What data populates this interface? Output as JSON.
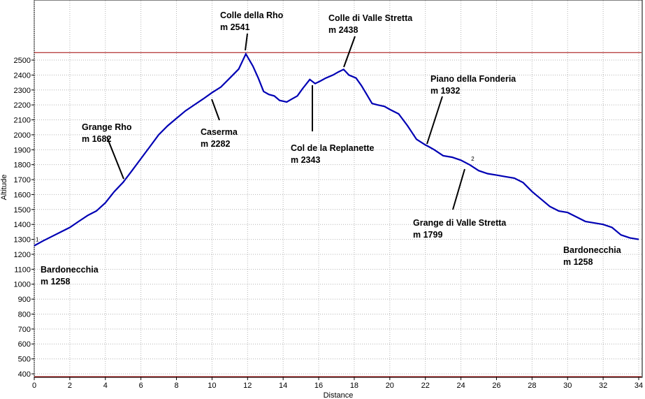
{
  "chart_data": {
    "type": "line",
    "xlabel": "Distance",
    "ylabel": "Altitude",
    "xlim": [
      0,
      34
    ],
    "ylim": [
      380,
      2560
    ],
    "x_ticks": [
      0,
      2,
      4,
      6,
      8,
      10,
      12,
      14,
      16,
      18,
      20,
      22,
      24,
      26,
      28,
      30,
      32,
      34
    ],
    "y_ticks": [
      400,
      500,
      600,
      700,
      800,
      900,
      1000,
      1100,
      1200,
      1300,
      1400,
      1500,
      1600,
      1700,
      1800,
      1900,
      2000,
      2100,
      2200,
      2300,
      2400,
      2500
    ],
    "grid": true,
    "reference_line": 2550,
    "line_color": "#0000b4",
    "series": [
      {
        "x": [
          0,
          0.5,
          1,
          1.5,
          2,
          2.5,
          3,
          3.5,
          4,
          4.5,
          5,
          5.5,
          6,
          6.5,
          7,
          7.5,
          8,
          8.5,
          9,
          9.5,
          10,
          10.5,
          11,
          11.5,
          11.9,
          12.3,
          12.6,
          12.9,
          13.2,
          13.5,
          13.8,
          14.2,
          14.5,
          14.8,
          15.1,
          15.5,
          15.8,
          16.1,
          16.4,
          16.8,
          17.1,
          17.4,
          17.7,
          18.1,
          18.4,
          18.7,
          19.0,
          19.3,
          19.7,
          20.0,
          20.5,
          21.0,
          21.5,
          22.0,
          22.2,
          22.5,
          23.0,
          23.5,
          24.0,
          24.5,
          25.0,
          25.5,
          26.0,
          26.5,
          27.0,
          27.5,
          28.0,
          28.5,
          29.0,
          29.5,
          30.0,
          30.5,
          31.0,
          31.5,
          32.0,
          32.5,
          33.0,
          33.5,
          34.0
        ],
        "y": [
          1258,
          1290,
          1320,
          1350,
          1380,
          1420,
          1460,
          1490,
          1545,
          1620,
          1682,
          1760,
          1840,
          1920,
          2000,
          2060,
          2110,
          2160,
          2200,
          2240,
          2282,
          2320,
          2380,
          2440,
          2541,
          2460,
          2380,
          2290,
          2270,
          2260,
          2230,
          2220,
          2240,
          2260,
          2310,
          2370,
          2343,
          2360,
          2380,
          2400,
          2420,
          2438,
          2400,
          2380,
          2330,
          2270,
          2210,
          2200,
          2190,
          2170,
          2140,
          2060,
          1970,
          1932,
          1920,
          1900,
          1860,
          1850,
          1830,
          1799,
          1760,
          1740,
          1730,
          1720,
          1710,
          1680,
          1620,
          1570,
          1520,
          1490,
          1480,
          1450,
          1420,
          1410,
          1400,
          1380,
          1330,
          1310,
          1300
        ]
      }
    ],
    "markers": [
      {
        "label": "1",
        "x": 0,
        "y": 1258
      },
      {
        "label": "2",
        "x": 24.5,
        "y": 1799
      }
    ],
    "annotations": [
      {
        "line1": "Colle della Rho",
        "line2": "m 2541"
      },
      {
        "line1": "Colle di Valle Stretta",
        "line2": "m 2438"
      },
      {
        "line1": "Grange Rho",
        "line2": "m 1682"
      },
      {
        "line1": "Caserma",
        "line2": "m 2282"
      },
      {
        "line1": "Piano della Fonderia",
        "line2": "m 1932"
      },
      {
        "line1": "Col de la Replanette",
        "line2": "m 2343"
      },
      {
        "line1": "Grange di Valle Stretta",
        "line2": "m 1799"
      },
      {
        "line1": "Bardonecchia",
        "line2": "m 1258"
      },
      {
        "line1": "Bardonecchia",
        "line2": "m 1258"
      }
    ]
  }
}
